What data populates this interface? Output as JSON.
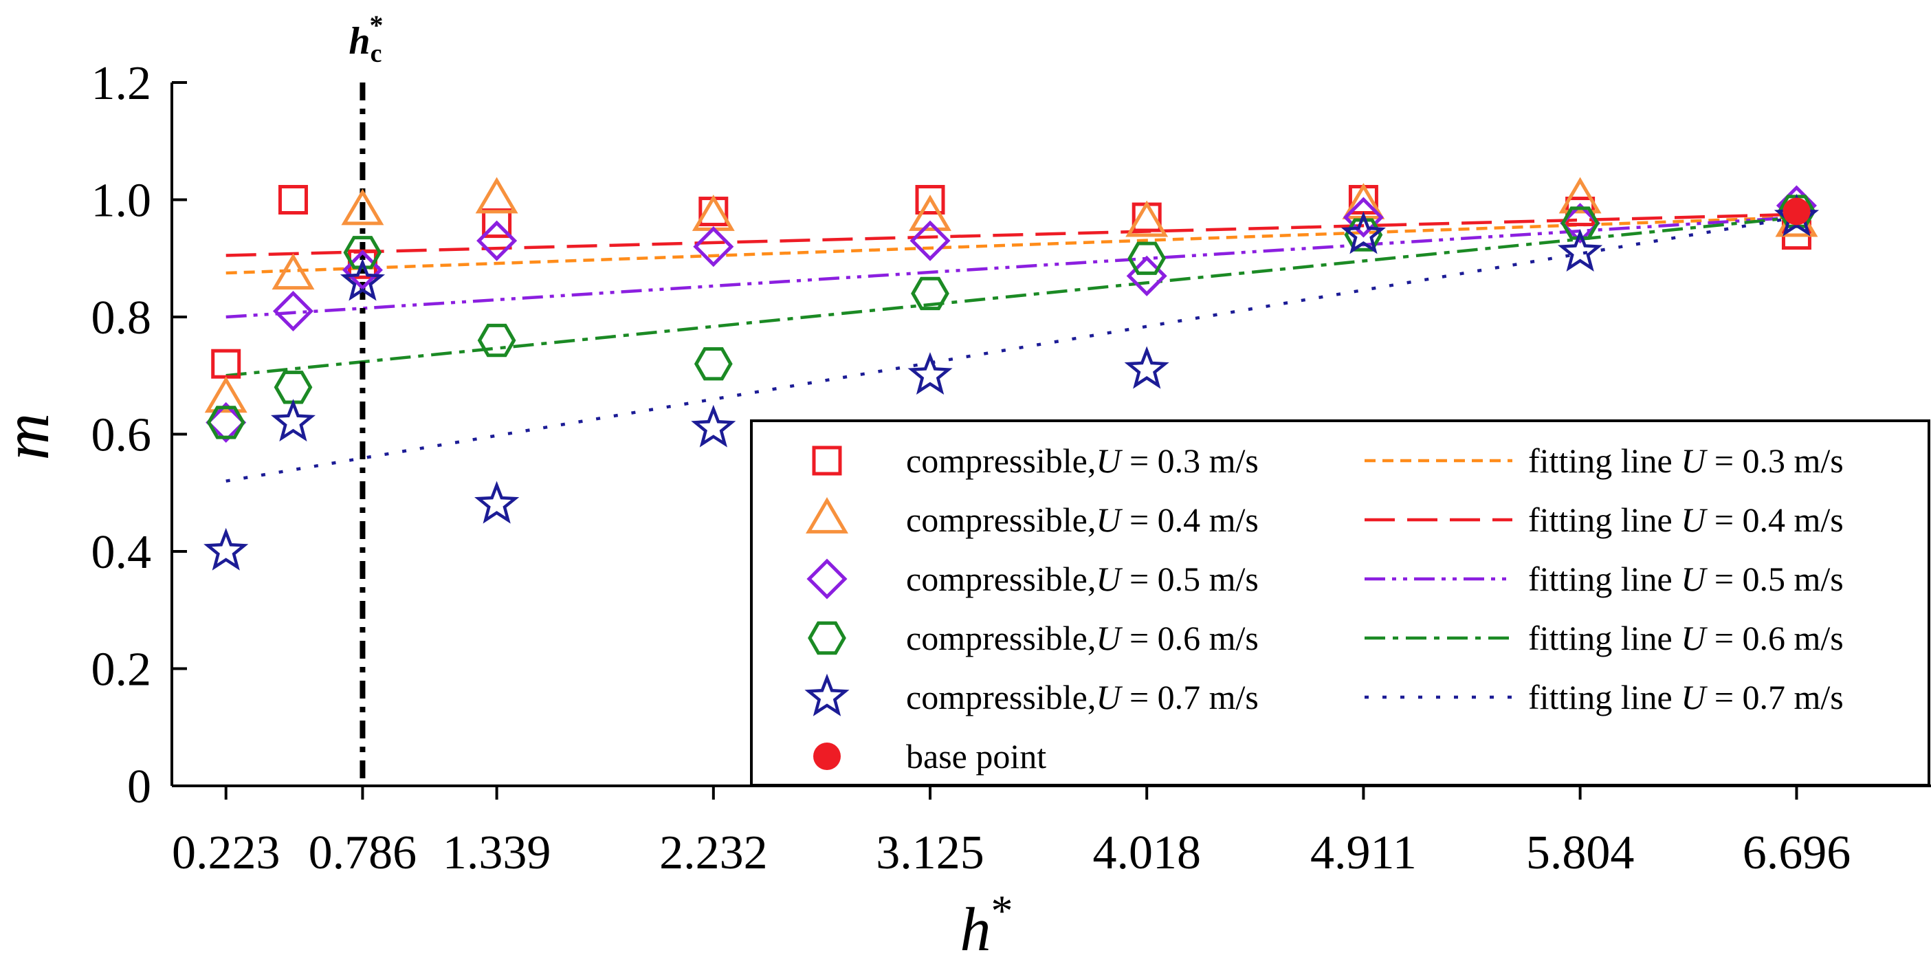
{
  "chart_data": {
    "type": "scatter",
    "title": "",
    "xlabel": "h*",
    "ylabel": "m",
    "x_ticks": [
      0.223,
      0.786,
      1.339,
      2.232,
      3.125,
      4.018,
      4.911,
      5.804,
      6.696
    ],
    "x_tick_labels": [
      "0.223",
      "0.786",
      "1.339",
      "2.232",
      "3.125",
      "4.018",
      "4.911",
      "5.804",
      "6.696"
    ],
    "xlim": [
      0,
      7.25
    ],
    "ylim": [
      0,
      1.2
    ],
    "y_ticks": [
      0,
      0.2,
      0.4,
      0.6,
      0.8,
      1.0,
      1.2
    ],
    "y_tick_labels": [
      "0",
      "0.2",
      "0.4",
      "0.6",
      "0.8",
      "1.0",
      "1.2"
    ],
    "grid": false,
    "legend_position": "lower-right",
    "critical_line": {
      "x": 0.786,
      "label_main": "h",
      "label_sub": "c",
      "label_sup": "*"
    },
    "series": [
      {
        "name": "compressible,U = 0.3 m/s",
        "legend_prefix": "compressible,",
        "legend_var": "U",
        "legend_suffix": " = 0.3 m/s",
        "marker": "square",
        "color": "#ee1c25",
        "x": [
          0.223,
          0.5,
          0.786,
          1.339,
          2.232,
          3.125,
          4.018,
          4.911,
          5.804,
          6.696
        ],
        "y": [
          0.72,
          1.0,
          0.89,
          0.96,
          0.98,
          1.0,
          0.97,
          1.0,
          0.98,
          0.94
        ],
        "fit": {
          "name": "fitting line U = 0.3 m/s",
          "legend_prefix": "fitting line ",
          "legend_var": "U",
          "legend_suffix": " = 0.3 m/s",
          "style": "short-dash",
          "color": "#ff8c1a",
          "y_start": 0.875,
          "y_end": 0.97
        }
      },
      {
        "name": "compressible,U = 0.4 m/s",
        "legend_prefix": "compressible,",
        "legend_var": "U",
        "legend_suffix": " = 0.4 m/s",
        "marker": "triangle",
        "color": "#f7913d",
        "x": [
          0.223,
          0.5,
          0.786,
          1.339,
          2.232,
          3.125,
          4.018,
          4.911,
          5.804,
          6.696
        ],
        "y": [
          0.66,
          0.87,
          0.98,
          1.0,
          0.97,
          0.97,
          0.96,
          0.99,
          1.0,
          0.96
        ],
        "fit": {
          "name": "fitting line U = 0.4 m/s",
          "legend_prefix": "fitting line ",
          "legend_var": "U",
          "legend_suffix": " = 0.4 m/s",
          "style": "long-dash",
          "color": "#ee1c25",
          "y_start": 0.905,
          "y_end": 0.975
        }
      },
      {
        "name": "compressible,U = 0.5 m/s",
        "legend_prefix": "compressible,",
        "legend_var": "U",
        "legend_suffix": " = 0.5 m/s",
        "marker": "diamond",
        "color": "#8b1fe0",
        "x": [
          0.223,
          0.5,
          0.786,
          1.339,
          2.232,
          3.125,
          4.018,
          4.911,
          5.804,
          6.696
        ],
        "y": [
          0.62,
          0.81,
          0.88,
          0.93,
          0.92,
          0.93,
          0.87,
          0.97,
          0.96,
          0.99
        ],
        "fit": {
          "name": "fitting line U = 0.5 m/s",
          "legend_prefix": "fitting line ",
          "legend_var": "U",
          "legend_suffix": " = 0.5 m/s",
          "style": "dash-dot-dot",
          "color": "#8b1fe0",
          "y_start": 0.8,
          "y_end": 0.97
        }
      },
      {
        "name": "compressible,U = 0.6 m/s",
        "legend_prefix": "compressible,",
        "legend_var": "U",
        "legend_suffix": " = 0.6 m/s",
        "marker": "hexagon",
        "color": "#1b8a24",
        "x": [
          0.223,
          0.5,
          0.786,
          1.339,
          2.232,
          3.125,
          4.018,
          4.911,
          5.804,
          6.696
        ],
        "y": [
          0.62,
          0.68,
          0.91,
          0.76,
          0.72,
          0.84,
          0.9,
          0.94,
          0.96,
          0.98
        ],
        "fit": {
          "name": "fitting line U = 0.6 m/s",
          "legend_prefix": "fitting line ",
          "legend_var": "U",
          "legend_suffix": " = 0.6 m/s",
          "style": "dash-dot",
          "color": "#1b8a24",
          "y_start": 0.7,
          "y_end": 0.97
        }
      },
      {
        "name": "compressible,U = 0.7 m/s",
        "legend_prefix": "compressible,",
        "legend_var": "U",
        "legend_suffix": " = 0.7 m/s",
        "marker": "star",
        "color": "#1c1c96",
        "x": [
          0.223,
          0.5,
          0.786,
          1.339,
          2.232,
          3.125,
          4.018,
          4.911,
          5.804,
          6.696
        ],
        "y": [
          0.4,
          0.62,
          0.86,
          0.48,
          0.61,
          0.7,
          0.71,
          0.94,
          0.91,
          0.97
        ],
        "fit": {
          "name": "fitting line U = 0.7 m/s",
          "legend_prefix": "fitting line ",
          "legend_var": "U",
          "legend_suffix": " = 0.7 m/s",
          "style": "dotted",
          "color": "#1c1c96",
          "y_start": 0.52,
          "y_end": 0.97
        }
      }
    ],
    "base_point": {
      "name": "base point",
      "x": 6.696,
      "y": 0.98,
      "color": "#ee1c25"
    }
  }
}
